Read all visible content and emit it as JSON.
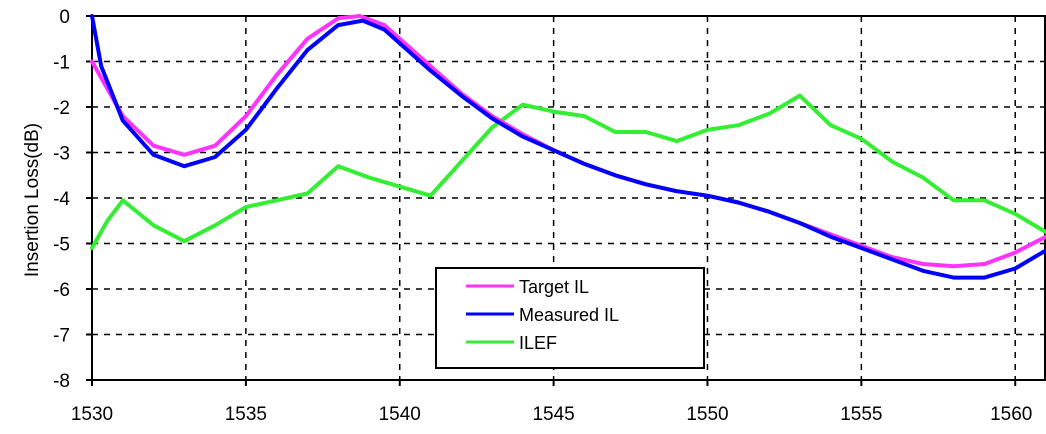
{
  "chart_data": {
    "type": "line",
    "title": "",
    "xlabel": "",
    "ylabel": "Insertion Loss(dB)",
    "xlim": [
      1530,
      1561
    ],
    "ylim": [
      -8,
      0
    ],
    "xticks": [
      1530,
      1535,
      1540,
      1545,
      1550,
      1555,
      1560
    ],
    "xtick_labels": [
      "1530",
      "1535",
      "1540",
      "1545",
      "1550",
      "1555",
      "1560"
    ],
    "yticks": [
      0,
      -1,
      -2,
      -3,
      -4,
      -5,
      -6,
      -7,
      -8
    ],
    "ytick_labels": [
      "0",
      "-1",
      "-2",
      "-3",
      "-4",
      "-5",
      "-6",
      "-7",
      "-8"
    ],
    "grid": true,
    "legend_position": "bottom-center",
    "series": [
      {
        "name": "Target IL",
        "color": "#ff33ff",
        "x": [
          1530,
          1531,
          1532,
          1533,
          1534,
          1535,
          1536,
          1537,
          1538,
          1538.7,
          1539.5,
          1540,
          1541,
          1542,
          1543,
          1544,
          1545,
          1546,
          1547,
          1548,
          1549,
          1550,
          1551,
          1552,
          1553,
          1554,
          1555,
          1556,
          1557,
          1558,
          1559,
          1560,
          1561
        ],
        "values": [
          -1.0,
          -2.2,
          -2.85,
          -3.05,
          -2.85,
          -2.2,
          -1.3,
          -0.5,
          -0.05,
          0.0,
          -0.2,
          -0.5,
          -1.1,
          -1.7,
          -2.2,
          -2.6,
          -2.95,
          -3.25,
          -3.5,
          -3.7,
          -3.85,
          -3.95,
          -4.1,
          -4.3,
          -4.55,
          -4.8,
          -5.05,
          -5.3,
          -5.45,
          -5.5,
          -5.45,
          -5.2,
          -4.85
        ]
      },
      {
        "name": "Measured IL",
        "color": "#0000ff",
        "x": [
          1530,
          1530.3,
          1531,
          1532,
          1533,
          1534,
          1535,
          1536,
          1537,
          1538,
          1538.8,
          1539.5,
          1540,
          1541,
          1542,
          1543,
          1544,
          1545,
          1546,
          1547,
          1548,
          1549,
          1550,
          1551,
          1552,
          1553,
          1554,
          1555,
          1556,
          1557,
          1558,
          1559,
          1560,
          1561
        ],
        "values": [
          0.0,
          -1.1,
          -2.3,
          -3.05,
          -3.3,
          -3.1,
          -2.5,
          -1.6,
          -0.75,
          -0.2,
          -0.1,
          -0.3,
          -0.6,
          -1.2,
          -1.75,
          -2.25,
          -2.65,
          -2.95,
          -3.25,
          -3.5,
          -3.7,
          -3.85,
          -3.95,
          -4.1,
          -4.3,
          -4.55,
          -4.85,
          -5.1,
          -5.35,
          -5.6,
          -5.75,
          -5.75,
          -5.55,
          -5.15
        ]
      },
      {
        "name": "ILEF",
        "color": "#33ee33",
        "x": [
          1530,
          1530.5,
          1531,
          1532,
          1533,
          1534,
          1535,
          1536,
          1537,
          1538,
          1539,
          1540,
          1541,
          1542,
          1543,
          1544,
          1545,
          1546,
          1547,
          1548,
          1549,
          1550,
          1551,
          1552,
          1553,
          1554,
          1555,
          1556,
          1557,
          1558,
          1559,
          1560,
          1561
        ],
        "values": [
          -5.1,
          -4.5,
          -4.05,
          -4.6,
          -4.95,
          -4.6,
          -4.2,
          -4.05,
          -3.9,
          -3.3,
          -3.55,
          -3.75,
          -3.95,
          -3.2,
          -2.45,
          -1.95,
          -2.1,
          -2.2,
          -2.55,
          -2.55,
          -2.75,
          -2.5,
          -2.4,
          -2.15,
          -1.75,
          -2.4,
          -2.7,
          -3.2,
          -3.55,
          -4.05,
          -4.05,
          -4.35,
          -4.75
        ]
      }
    ]
  }
}
